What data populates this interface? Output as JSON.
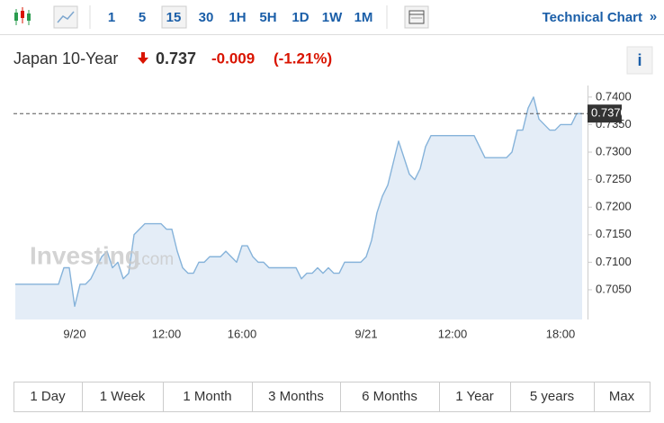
{
  "toolbar": {
    "intervals": [
      "1",
      "5",
      "15",
      "30",
      "1H",
      "5H",
      "1D",
      "1W",
      "1M"
    ],
    "technical_chart": "Technical Chart",
    "more": "»"
  },
  "header": {
    "name": "Japan 10-Year",
    "price": "0.737",
    "change": "-0.009",
    "change_pct": "(-1.21%)",
    "info": "i"
  },
  "watermark": {
    "brand": "Investing",
    "domain": ".com"
  },
  "chart_data": {
    "type": "area",
    "categories": [
      null,
      null,
      null,
      null,
      null,
      null,
      null,
      null,
      null,
      null,
      null,
      "9/20",
      null,
      null,
      null,
      null,
      null,
      null,
      null,
      null,
      null,
      null,
      null,
      null,
      null,
      null,
      null,
      null,
      "12:00",
      null,
      null,
      null,
      null,
      null,
      null,
      null,
      null,
      null,
      null,
      null,
      null,
      null,
      "16:00",
      null,
      null,
      null,
      null,
      null,
      null,
      null,
      null,
      null,
      null,
      null,
      null,
      null,
      null,
      null,
      null,
      null,
      null,
      null,
      null,
      null,
      null,
      "9/21",
      null,
      null,
      null,
      null,
      null,
      null,
      null,
      null,
      null,
      null,
      null,
      null,
      null,
      null,
      null,
      "12:00",
      null,
      null,
      null,
      null,
      null,
      null,
      null,
      null,
      null,
      null,
      null,
      null,
      null,
      null,
      null,
      null,
      null,
      null,
      null,
      "18:00",
      null,
      null,
      null,
      null
    ],
    "series": [
      {
        "name": "Japan 10-Year",
        "color": "#86b3da",
        "fill": "#e4edf7",
        "values": [
          0.706,
          0.706,
          0.706,
          0.706,
          0.706,
          0.706,
          0.706,
          0.706,
          0.706,
          0.709,
          0.709,
          0.702,
          0.706,
          0.706,
          0.707,
          0.709,
          0.711,
          0.712,
          0.709,
          0.71,
          0.707,
          0.708,
          0.715,
          0.716,
          0.717,
          0.717,
          0.717,
          0.717,
          0.716,
          0.716,
          0.712,
          0.709,
          0.708,
          0.708,
          0.71,
          0.71,
          0.711,
          0.711,
          0.711,
          0.712,
          0.711,
          0.71,
          0.713,
          0.713,
          0.711,
          0.71,
          0.71,
          0.709,
          0.709,
          0.709,
          0.709,
          0.709,
          0.709,
          0.707,
          0.708,
          0.708,
          0.709,
          0.708,
          0.709,
          0.708,
          0.708,
          0.71,
          0.71,
          0.71,
          0.71,
          0.711,
          0.714,
          0.719,
          0.722,
          0.724,
          0.728,
          0.732,
          0.729,
          0.726,
          0.725,
          0.727,
          0.731,
          0.733,
          0.733,
          0.733,
          0.733,
          0.733,
          0.733,
          0.733,
          0.733,
          0.733,
          0.731,
          0.729,
          0.729,
          0.729,
          0.729,
          0.729,
          0.73,
          0.734,
          0.734,
          0.738,
          0.74,
          0.736,
          0.735,
          0.734,
          0.734,
          0.735,
          0.735,
          0.735,
          0.737,
          0.737
        ]
      }
    ],
    "ylim": [
      0.6996,
      0.7421
    ],
    "yticks": [
      {
        "value": 0.705,
        "label": "0.7050"
      },
      {
        "value": 0.71,
        "label": "0.7100"
      },
      {
        "value": 0.715,
        "label": "0.7150"
      },
      {
        "value": 0.72,
        "label": "0.7200"
      },
      {
        "value": 0.725,
        "label": "0.7250"
      },
      {
        "value": 0.73,
        "label": "0.7300"
      },
      {
        "value": 0.735,
        "label": "0.7350"
      },
      {
        "value": 0.74,
        "label": "0.7400"
      }
    ],
    "last_price": {
      "value": 0.737,
      "label": "0.7370"
    },
    "grid": false
  },
  "ranges": [
    "1 Day",
    "1 Week",
    "1 Month",
    "3 Months",
    "6 Months",
    "1 Year",
    "5 years",
    "Max"
  ]
}
